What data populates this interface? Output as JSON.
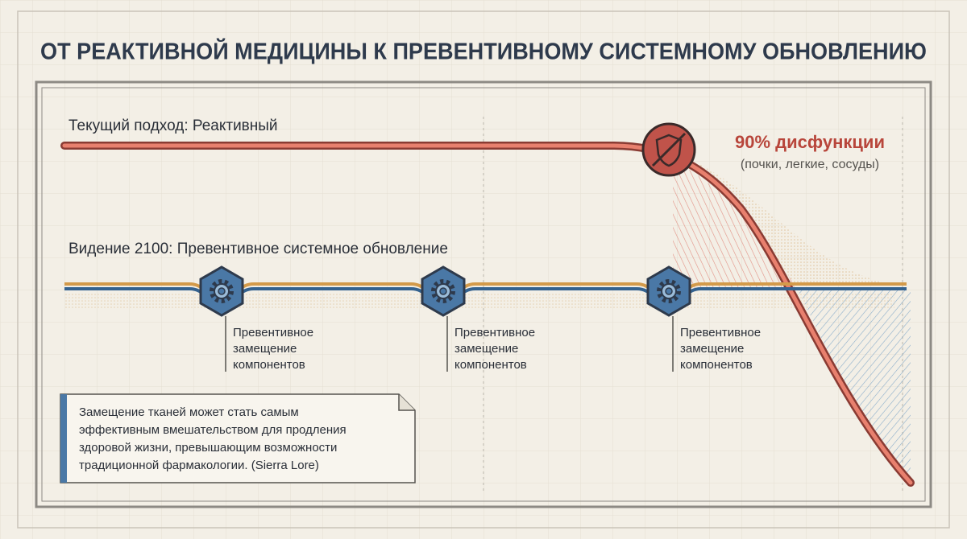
{
  "header": {
    "title": "ОТ РЕАКТИВНОЙ МЕДИЦИНЫ К ПРЕВЕНТИВНОМУ СИСТЕМНОМУ ОБНОВЛЕНИЮ"
  },
  "current": {
    "label": "Текущий подход: Реактивный",
    "callout": "90% дисфункции",
    "callout_note": "(почки, легкие, сосуды)"
  },
  "vision": {
    "label": "Видение 2100: Превентивное системное обновление",
    "milestones": [
      {
        "lines": [
          "Превентивное",
          "замещение",
          "компонентов"
        ]
      },
      {
        "lines": [
          "Превентивное",
          "замещение",
          "компонентов"
        ]
      },
      {
        "lines": [
          "Превентивное",
          "замещение",
          "компонентов"
        ]
      }
    ]
  },
  "quote": {
    "lines": [
      "Замещение тканей может стать самым",
      "эффективным вмешательством для продления",
      "здоровой жизни, превышающим возможности",
      "традиционной фармакологии. (Sierra Lore)"
    ]
  }
}
